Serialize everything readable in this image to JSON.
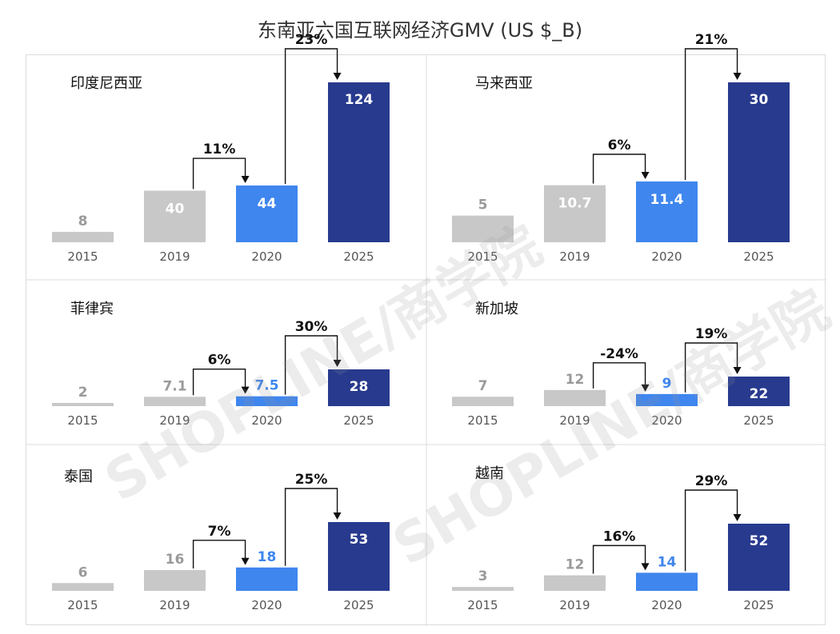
{
  "title": "东南亚六国互联网经济GMV (US $_B)",
  "watermark": "SHOPLINE/商学院",
  "colors": {
    "2015": "#c8c8c8",
    "2019": "#c8c8c8",
    "2020": "#3f86ee",
    "2025": "#283a8e",
    "label_2015": "#9a9a9a",
    "label_2019": "#9a9a9a",
    "label_2020": "#3f86ee",
    "label_2025": "#ffffff"
  },
  "chart_data": [
    {
      "type": "bar",
      "title": "印度尼西亚",
      "categories": [
        "2015",
        "2019",
        "2020",
        "2025"
      ],
      "values": [
        8,
        40,
        44,
        124
      ],
      "value_labels": [
        "8",
        "40",
        "44",
        "124"
      ],
      "growth": [
        {
          "from": "2019",
          "to": "2020",
          "label": "11%"
        },
        {
          "from": "2020",
          "to": "2025",
          "label": "23%"
        }
      ]
    },
    {
      "type": "bar",
      "title": "马来西亚",
      "categories": [
        "2015",
        "2019",
        "2020",
        "2025"
      ],
      "values": [
        5,
        10.7,
        11.4,
        30
      ],
      "value_labels": [
        "5",
        "10.7",
        "11.4",
        "30"
      ],
      "growth": [
        {
          "from": "2019",
          "to": "2020",
          "label": "6%"
        },
        {
          "from": "2020",
          "to": "2025",
          "label": "21%"
        }
      ]
    },
    {
      "type": "bar",
      "title": "菲律宾",
      "categories": [
        "2015",
        "2019",
        "2020",
        "2025"
      ],
      "values": [
        2,
        7.1,
        7.5,
        28
      ],
      "value_labels": [
        "2",
        "7.1",
        "7.5",
        "28"
      ],
      "growth": [
        {
          "from": "2019",
          "to": "2020",
          "label": "6%"
        },
        {
          "from": "2020",
          "to": "2025",
          "label": "30%"
        }
      ]
    },
    {
      "type": "bar",
      "title": "新加坡",
      "categories": [
        "2015",
        "2019",
        "2020",
        "2025"
      ],
      "values": [
        7,
        12,
        9,
        22
      ],
      "value_labels": [
        "7",
        "12",
        "9",
        "22"
      ],
      "growth": [
        {
          "from": "2019",
          "to": "2020",
          "label": "-24%"
        },
        {
          "from": "2020",
          "to": "2025",
          "label": "19%"
        }
      ]
    },
    {
      "type": "bar",
      "title": "泰国",
      "categories": [
        "2015",
        "2019",
        "2020",
        "2025"
      ],
      "values": [
        6,
        16,
        18,
        53
      ],
      "value_labels": [
        "6",
        "16",
        "18",
        "53"
      ],
      "growth": [
        {
          "from": "2019",
          "to": "2020",
          "label": "7%"
        },
        {
          "from": "2020",
          "to": "2025",
          "label": "25%"
        }
      ]
    },
    {
      "type": "bar",
      "title": "越南",
      "categories": [
        "2015",
        "2019",
        "2020",
        "2025"
      ],
      "values": [
        3,
        12,
        14,
        52
      ],
      "value_labels": [
        "3",
        "12",
        "14",
        "52"
      ],
      "growth": [
        {
          "from": "2019",
          "to": "2020",
          "label": "16%"
        },
        {
          "from": "2020",
          "to": "2025",
          "label": "29%"
        }
      ]
    }
  ]
}
